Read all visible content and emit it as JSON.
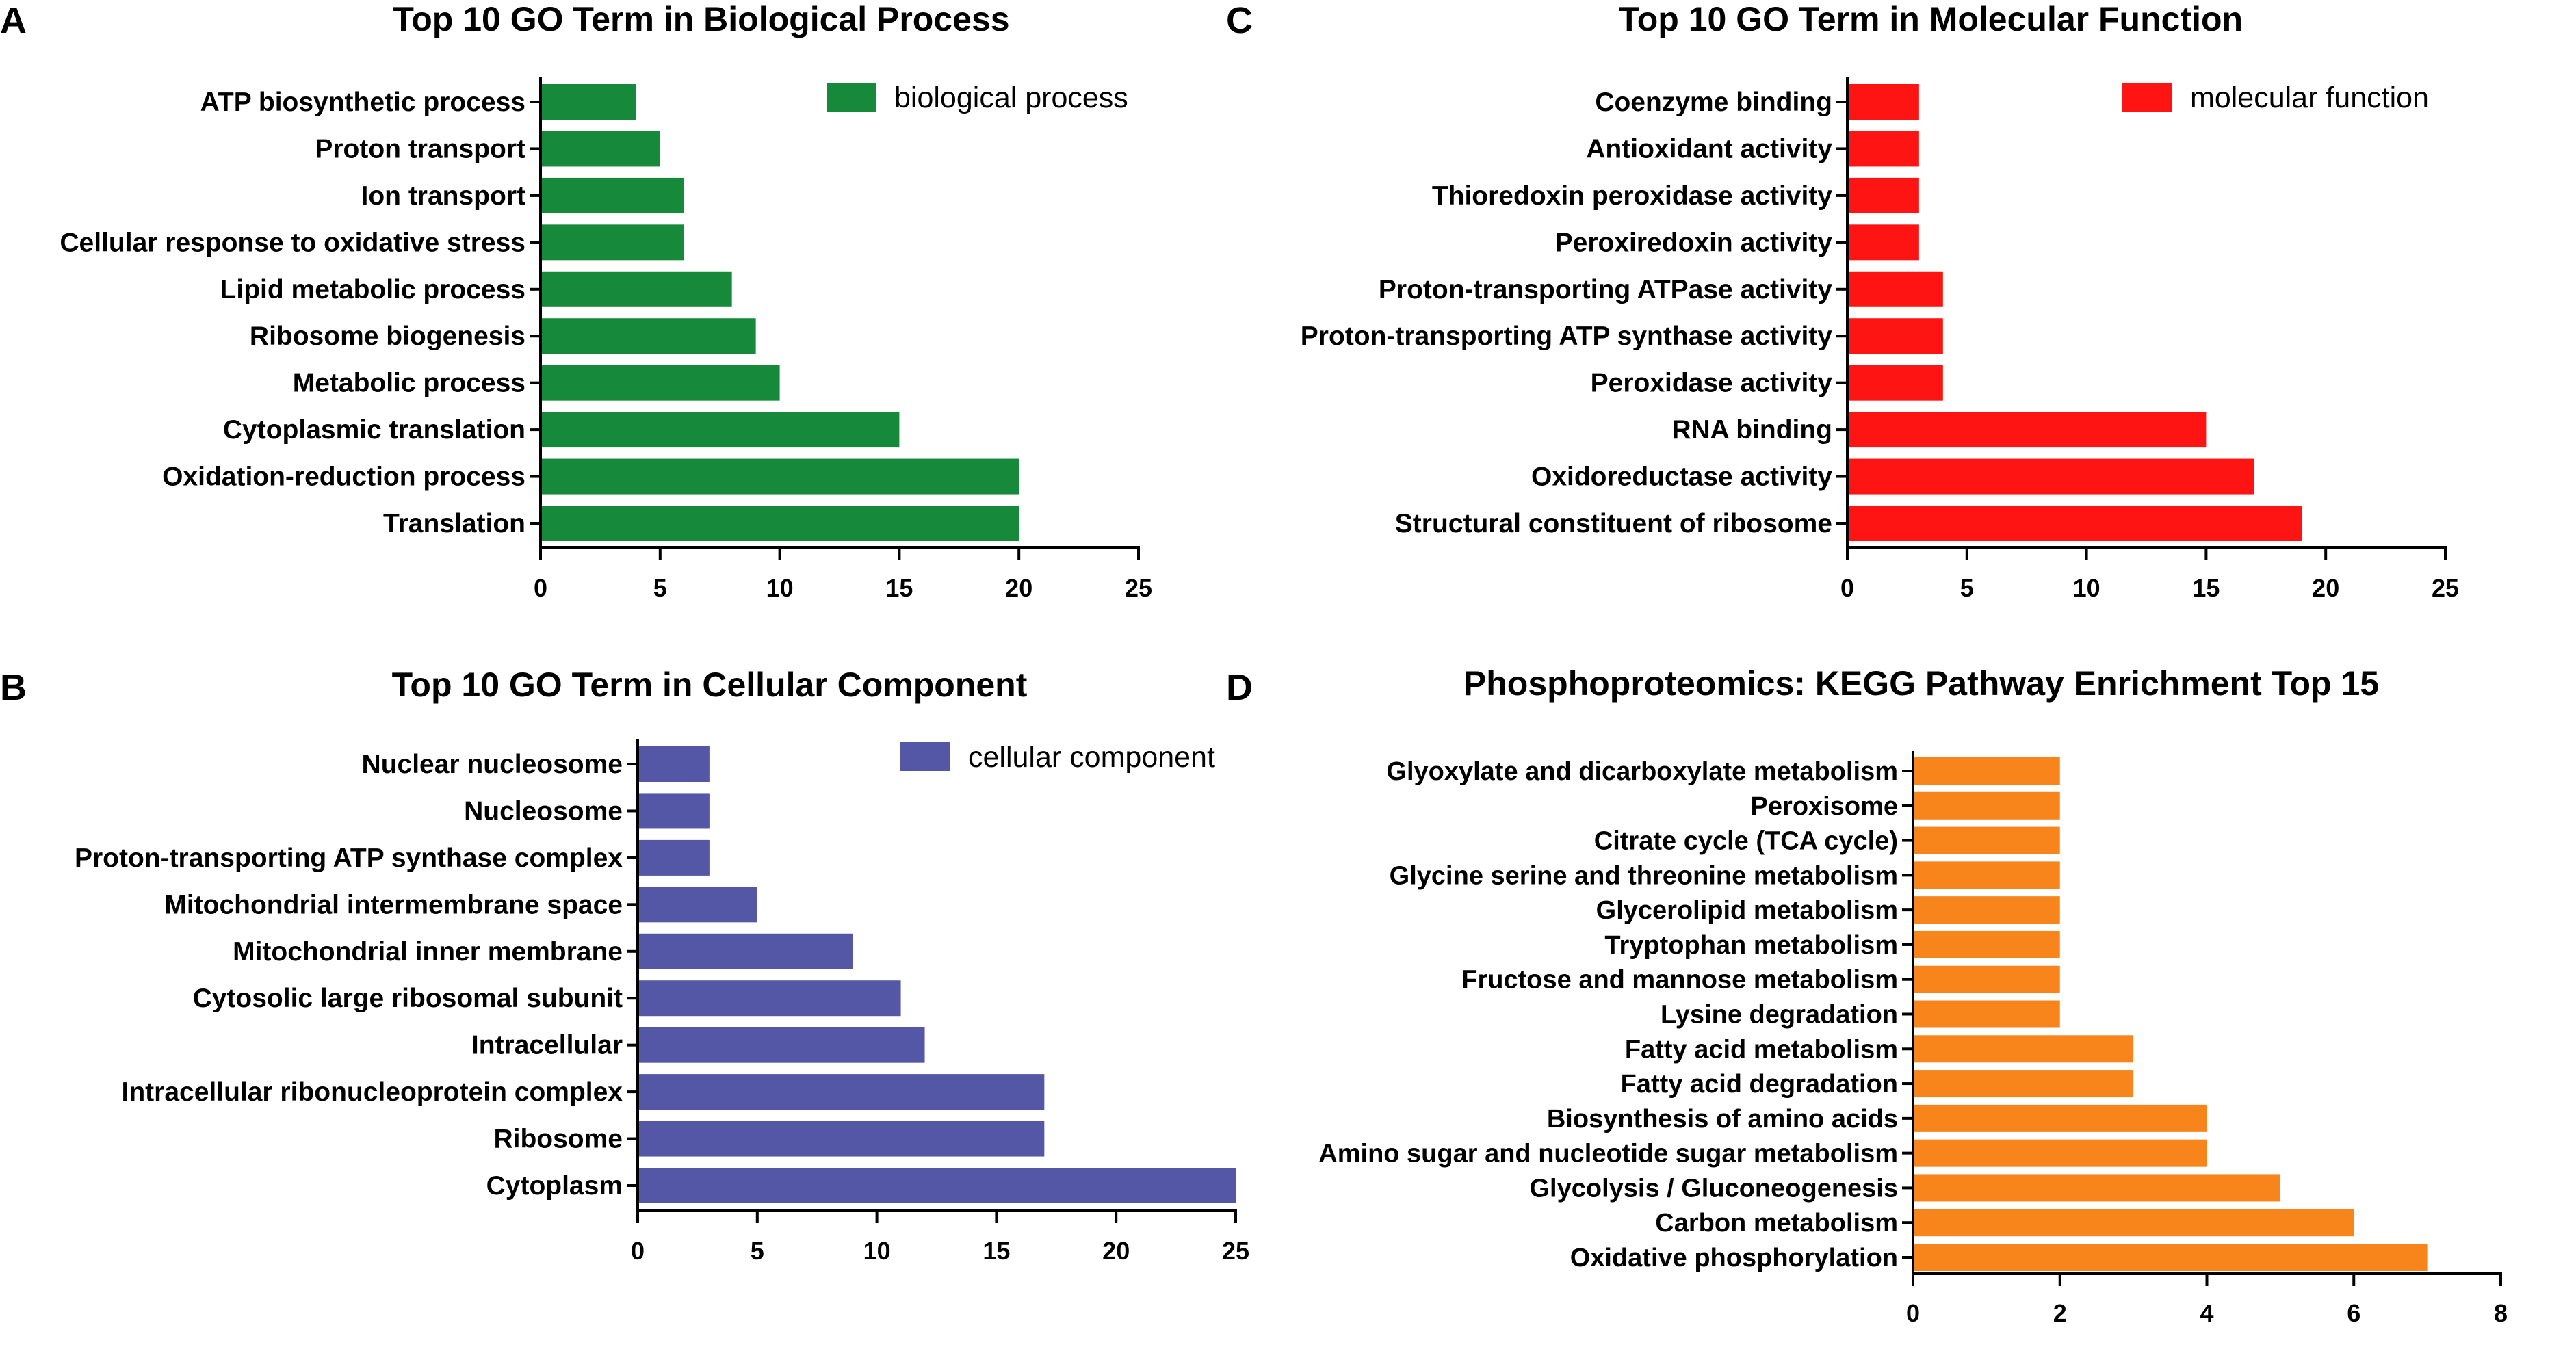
{
  "chart_data": [
    {
      "type": "bar",
      "orientation": "horizontal",
      "panel": "A",
      "title": "Top 10 GO Term in Biological Process",
      "legend": "biological process",
      "color": "#168a3a",
      "categories": [
        "ATP biosynthetic process",
        "Proton transport",
        "Ion transport",
        "Cellular response to oxidative stress",
        "Lipid metabolic process",
        "Ribosome biogenesis",
        "Metabolic process",
        "Cytoplasmic translation",
        "Oxidation-reduction process",
        "Translation"
      ],
      "values": [
        4,
        5,
        6,
        6,
        8,
        9,
        10,
        15,
        20,
        20
      ],
      "xlim": [
        0,
        25
      ],
      "xticks": [
        "0",
        "5",
        "10",
        "15",
        "20",
        "25"
      ]
    },
    {
      "type": "bar",
      "orientation": "horizontal",
      "panel": "B",
      "title": "Top 10 GO Term in Cellular Component",
      "legend": "cellular component",
      "color": "#5457a6",
      "categories": [
        "Nuclear nucleosome",
        "Nucleosome",
        "Proton-transporting ATP synthase complex",
        "Mitochondrial intermembrane space",
        "Mitochondrial inner membrane",
        "Cytosolic large ribosomal subunit",
        "Intracellular",
        "Intracellular ribonucleoprotein complex",
        "Ribosome",
        "Cytoplasm"
      ],
      "values": [
        3,
        3,
        3,
        5,
        9,
        11,
        12,
        17,
        17,
        25
      ],
      "xlim": [
        0,
        25
      ],
      "xticks": [
        "0",
        "5",
        "10",
        "15",
        "20",
        "25"
      ]
    },
    {
      "type": "bar",
      "orientation": "horizontal",
      "panel": "C",
      "title": "Top 10 GO Term in Molecular Function",
      "legend": "molecular function",
      "color": "#ff1414",
      "categories": [
        "Coenzyme binding",
        "Antioxidant activity",
        "Thioredoxin peroxidase activity",
        "Peroxiredoxin activity",
        "Proton-transporting ATPase activity",
        "Proton-transporting ATP synthase activity",
        "Peroxidase activity",
        "RNA binding",
        "Oxidoreductase activity",
        "Structural constituent of ribosome"
      ],
      "values": [
        3,
        3,
        3,
        3,
        4,
        4,
        4,
        15,
        17,
        19
      ],
      "xlim": [
        0,
        25
      ],
      "xticks": [
        "0",
        "5",
        "10",
        "15",
        "20",
        "25"
      ]
    },
    {
      "type": "bar",
      "orientation": "horizontal",
      "panel": "D",
      "title": "Phosphoproteomics: KEGG Pathway Enrichment Top 15",
      "legend": "",
      "color": "#f7851b",
      "categories": [
        "Glyoxylate and dicarboxylate metabolism",
        "Peroxisome",
        "Citrate cycle (TCA cycle)",
        "Glycine serine and threonine metabolism",
        "Glycerolipid metabolism",
        "Tryptophan metabolism",
        "Fructose and mannose metabolism",
        "Lysine degradation",
        "Fatty acid metabolism",
        "Fatty acid degradation",
        "Biosynthesis of amino acids",
        "Amino sugar and nucleotide sugar metabolism",
        "Glycolysis / Gluconeogenesis",
        "Carbon metabolism",
        "Oxidative phosphorylation"
      ],
      "values": [
        2,
        2,
        2,
        2,
        2,
        2,
        2,
        2,
        3,
        3,
        4,
        4,
        5,
        6,
        7
      ],
      "xlim": [
        0,
        8
      ],
      "xticks": [
        "0",
        "2",
        "4",
        "6",
        "8"
      ]
    }
  ]
}
